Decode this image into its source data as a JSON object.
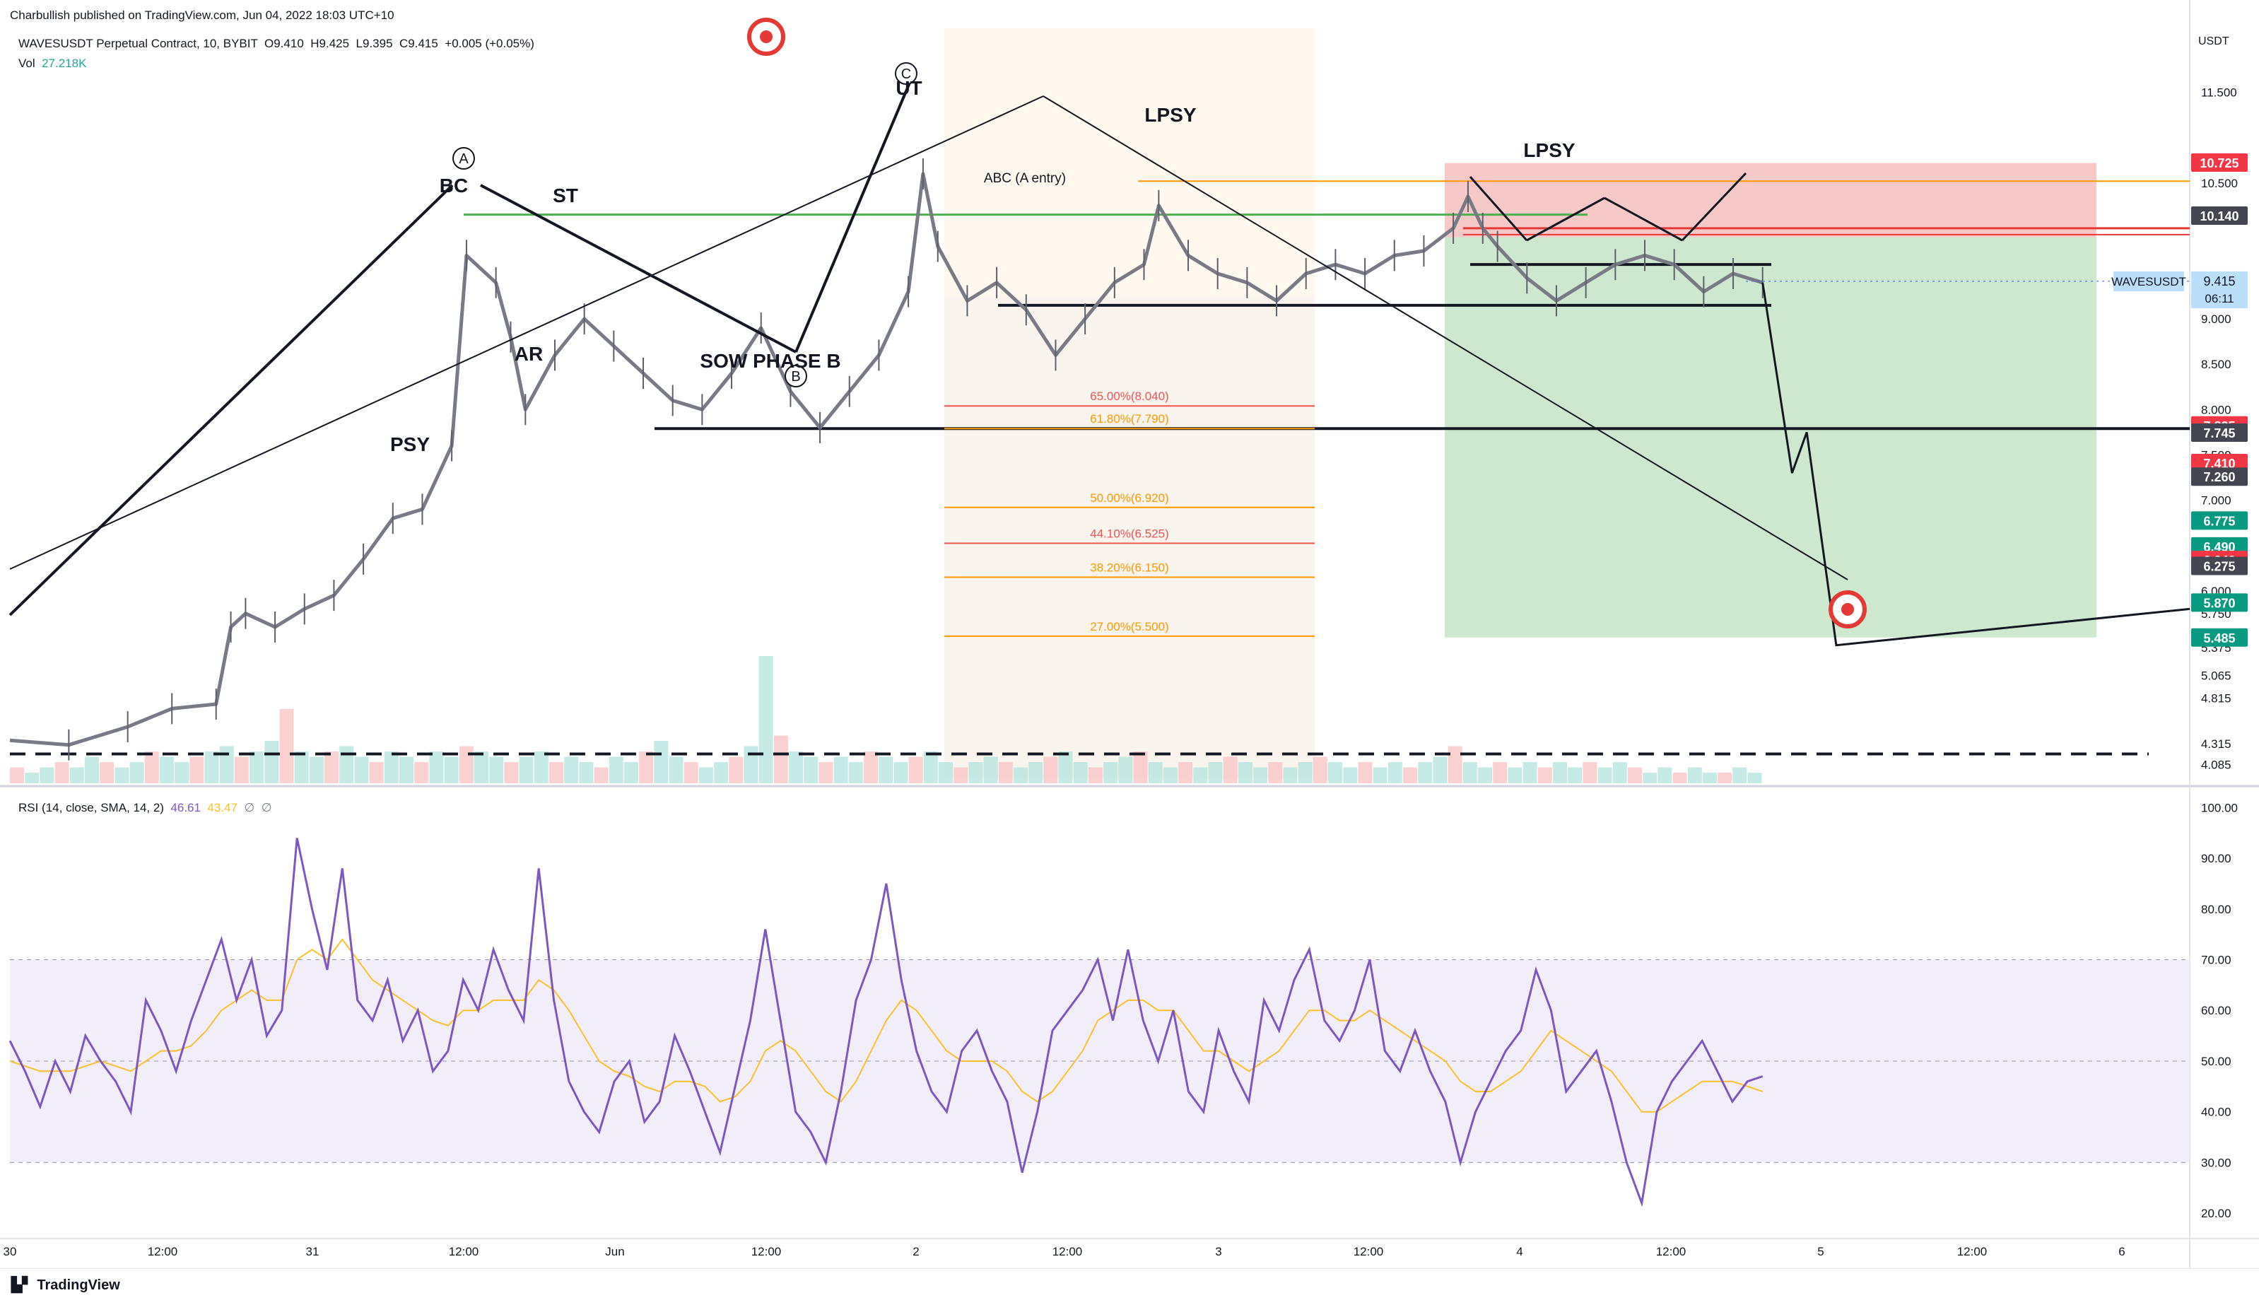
{
  "publisher_line": "Charbullish published on TradingView.com, Jun 04, 2022 18:03 UTC+10",
  "symbol_line": "WAVESUSDT Perpetual Contract, 10, BYBIT",
  "ohlc": {
    "o": "O9.410",
    "h": "H9.425",
    "l": "L9.395",
    "c": "C9.415",
    "chg": "+0.005 (+0.05%)"
  },
  "volume": {
    "label": "Vol",
    "value": "27.218K"
  },
  "rsi_legend": {
    "label": "RSI (14, close, SMA, 14, 2)",
    "rsi": "46.61",
    "sma": "43.47",
    "z1": "∅",
    "z2": "∅"
  },
  "logo": "TradingView",
  "currency": "USDT",
  "colors": {
    "up": "#26a69a",
    "down": "#ef5350",
    "candle": "#787b86",
    "rsi": "#7e57c2",
    "rsi_ma": "#fbc02d",
    "green_line": "#4caf50",
    "orange_line": "#ff9800",
    "target": "#e53935"
  },
  "chart_data": {
    "type": "line",
    "title": "WAVESUSDT Perpetual Contract, 10, BYBIT",
    "price_axis": {
      "ylim": [
        3.9,
        12.3
      ],
      "ticks": [
        "11.500",
        "10.500",
        "9.415",
        "9.000",
        "8.500",
        "8.000",
        "7.500",
        "7.000",
        "6.500",
        "6.000",
        "5.750",
        "5.375",
        "5.065",
        "4.815",
        "4.315",
        "4.085"
      ]
    },
    "time_axis": {
      "labels": [
        "30",
        "12:00",
        "31",
        "12:00",
        "Jun",
        "12:00",
        "2",
        "12:00",
        "3",
        "12:00",
        "4",
        "12:00",
        "5",
        "12:00",
        "6"
      ]
    },
    "price_path": [
      {
        "t": 0,
        "p": 4.35
      },
      {
        "t": 4,
        "p": 4.3
      },
      {
        "t": 8,
        "p": 4.5
      },
      {
        "t": 11,
        "p": 4.7
      },
      {
        "t": 14,
        "p": 4.75
      },
      {
        "t": 15,
        "p": 5.6
      },
      {
        "t": 16,
        "p": 5.75
      },
      {
        "t": 18,
        "p": 5.6
      },
      {
        "t": 20,
        "p": 5.8
      },
      {
        "t": 22,
        "p": 5.95
      },
      {
        "t": 24,
        "p": 6.35
      },
      {
        "t": 26,
        "p": 6.8
      },
      {
        "t": 28,
        "p": 6.9
      },
      {
        "t": 30,
        "p": 7.6
      },
      {
        "t": 31,
        "p": 9.7
      },
      {
        "t": 33,
        "p": 9.4
      },
      {
        "t": 34,
        "p": 8.8
      },
      {
        "t": 35,
        "p": 8.0
      },
      {
        "t": 37,
        "p": 8.6
      },
      {
        "t": 39,
        "p": 9.0
      },
      {
        "t": 41,
        "p": 8.7
      },
      {
        "t": 43,
        "p": 8.4
      },
      {
        "t": 45,
        "p": 8.1
      },
      {
        "t": 47,
        "p": 8.0
      },
      {
        "t": 49,
        "p": 8.4
      },
      {
        "t": 51,
        "p": 8.9
      },
      {
        "t": 53,
        "p": 8.2
      },
      {
        "t": 55,
        "p": 7.8
      },
      {
        "t": 57,
        "p": 8.2
      },
      {
        "t": 59,
        "p": 8.6
      },
      {
        "t": 61,
        "p": 9.3
      },
      {
        "t": 62,
        "p": 10.6
      },
      {
        "t": 63,
        "p": 9.8
      },
      {
        "t": 65,
        "p": 9.2
      },
      {
        "t": 67,
        "p": 9.4
      },
      {
        "t": 69,
        "p": 9.1
      },
      {
        "t": 71,
        "p": 8.6
      },
      {
        "t": 73,
        "p": 9.0
      },
      {
        "t": 75,
        "p": 9.4
      },
      {
        "t": 77,
        "p": 9.6
      },
      {
        "t": 78,
        "p": 10.25
      },
      {
        "t": 80,
        "p": 9.7
      },
      {
        "t": 82,
        "p": 9.5
      },
      {
        "t": 84,
        "p": 9.4
      },
      {
        "t": 86,
        "p": 9.2
      },
      {
        "t": 88,
        "p": 9.5
      },
      {
        "t": 90,
        "p": 9.6
      },
      {
        "t": 92,
        "p": 9.5
      },
      {
        "t": 94,
        "p": 9.7
      },
      {
        "t": 96,
        "p": 9.75
      },
      {
        "t": 98,
        "p": 10.0
      },
      {
        "t": 99,
        "p": 10.35
      },
      {
        "t": 100,
        "p": 10.0
      },
      {
        "t": 101,
        "p": 9.8
      },
      {
        "t": 103,
        "p": 9.45
      },
      {
        "t": 105,
        "p": 9.2
      },
      {
        "t": 107,
        "p": 9.4
      },
      {
        "t": 109,
        "p": 9.6
      },
      {
        "t": 111,
        "p": 9.7
      },
      {
        "t": 113,
        "p": 9.6
      },
      {
        "t": 115,
        "p": 9.3
      },
      {
        "t": 117,
        "p": 9.5
      },
      {
        "t": 119,
        "p": 9.4
      }
    ],
    "wave_labels": [
      "A",
      "B",
      "C"
    ],
    "annotations": [
      "BC",
      "ST",
      "AR",
      "PSY",
      "SOW PHASE B",
      "UT",
      "LPSY",
      "LPSY",
      "ABC (A entry)"
    ],
    "fib_levels": [
      {
        "label": "65.00%(8.040)",
        "price": 8.04,
        "color": "#ef5350"
      },
      {
        "label": "61.80%(7.790)",
        "price": 7.79,
        "color": "#ff9800"
      },
      {
        "label": "50.00%(6.920)",
        "price": 6.92,
        "color": "#ff9800"
      },
      {
        "label": "44.10%(6.525)",
        "price": 6.525,
        "color": "#ef5350"
      },
      {
        "label": "38.20%(6.150)",
        "price": 6.15,
        "color": "#ff9800"
      },
      {
        "label": "27.00%(5.500)",
        "price": 5.5,
        "color": "#ff9800"
      }
    ],
    "price_tags": [
      {
        "text": "10.725",
        "price": 10.725,
        "bg": "#f23645"
      },
      {
        "text": "10.140",
        "price": 10.14,
        "bg": "#434651"
      },
      {
        "text": "7.825",
        "price": 7.825,
        "bg": "#f23645"
      },
      {
        "text": "7.745",
        "price": 7.745,
        "bg": "#434651"
      },
      {
        "text": "7.410",
        "price": 7.41,
        "bg": "#f23645"
      },
      {
        "text": "7.260",
        "price": 7.26,
        "bg": "#434651"
      },
      {
        "text": "6.775",
        "price": 6.775,
        "bg": "#089981"
      },
      {
        "text": "6.490",
        "price": 6.49,
        "bg": "#089981"
      },
      {
        "text": "6.340",
        "price": 6.34,
        "bg": "#f23645"
      },
      {
        "text": "6.275",
        "price": 6.275,
        "bg": "#434651"
      },
      {
        "text": "5.870",
        "price": 5.87,
        "bg": "#089981"
      },
      {
        "text": "5.485",
        "price": 5.485,
        "bg": "#089981"
      }
    ],
    "current_price": {
      "symbol": "WAVESUSDT",
      "price": "9.415",
      "countdown": "06:11",
      "value": 9.415
    },
    "green_resistance": 10.15,
    "orange_resistance": 10.52,
    "support_lines": [
      7.79,
      9.15,
      9.6
    ],
    "position": {
      "entry": 9.9,
      "stop": 10.72,
      "target": 5.485
    },
    "projection": [
      {
        "t": 119,
        "p": 9.4
      },
      {
        "t": 121,
        "p": 7.3
      },
      {
        "t": 122,
        "p": 7.75
      },
      {
        "t": 124,
        "p": 5.4
      },
      {
        "t": 148,
        "p": 5.8
      }
    ],
    "rsi": {
      "ylim": [
        15,
        102
      ],
      "ticks": [
        "100.00",
        "90.00",
        "80.00",
        "70.00",
        "60.00",
        "50.00",
        "40.00",
        "30.00",
        "20.00"
      ],
      "band": [
        30,
        70
      ],
      "values": [
        54,
        48,
        41,
        50,
        44,
        55,
        50,
        46,
        40,
        62,
        56,
        48,
        58,
        66,
        74,
        62,
        70,
        55,
        60,
        94,
        80,
        68,
        88,
        62,
        58,
        66,
        54,
        60,
        48,
        52,
        66,
        60,
        72,
        64,
        58,
        88,
        62,
        46,
        40,
        36,
        46,
        50,
        38,
        42,
        55,
        48,
        40,
        32,
        45,
        58,
        76,
        58,
        40,
        36,
        30,
        44,
        62,
        70,
        85,
        66,
        52,
        44,
        40,
        52,
        56,
        48,
        42,
        28,
        40,
        56,
        60,
        64,
        70,
        58,
        72,
        58,
        50,
        60,
        44,
        40,
        56,
        48,
        42,
        62,
        56,
        66,
        72,
        58,
        54,
        60,
        70,
        52,
        48,
        56,
        48,
        42,
        30,
        40,
        46,
        52,
        56,
        68,
        60,
        44,
        48,
        52,
        42,
        30,
        22,
        40,
        46,
        50,
        54,
        48,
        42,
        46,
        47
      ],
      "ma": [
        50,
        49,
        48,
        48,
        48,
        49,
        50,
        49,
        48,
        50,
        52,
        52,
        53,
        56,
        60,
        62,
        64,
        62,
        62,
        70,
        72,
        70,
        74,
        70,
        66,
        64,
        62,
        60,
        58,
        57,
        60,
        60,
        62,
        62,
        62,
        66,
        64,
        60,
        55,
        50,
        48,
        47,
        45,
        44,
        46,
        46,
        45,
        42,
        43,
        46,
        52,
        54,
        52,
        48,
        44,
        42,
        46,
        52,
        58,
        62,
        60,
        56,
        52,
        50,
        50,
        50,
        48,
        44,
        42,
        44,
        48,
        52,
        58,
        60,
        62,
        62,
        60,
        60,
        56,
        52,
        52,
        50,
        48,
        50,
        52,
        56,
        60,
        60,
        58,
        58,
        60,
        58,
        56,
        54,
        52,
        50,
        46,
        44,
        44,
        46,
        48,
        52,
        56,
        54,
        52,
        50,
        48,
        44,
        40,
        40,
        42,
        44,
        46,
        46,
        46,
        45,
        44
      ]
    },
    "volume_values": [
      3,
      2,
      3,
      4,
      3,
      5,
      4,
      3,
      4,
      6,
      5,
      4,
      5,
      6,
      7,
      5,
      6,
      8,
      14,
      6,
      5,
      6,
      7,
      5,
      4,
      6,
      5,
      4,
      6,
      5,
      7,
      6,
      5,
      4,
      5,
      6,
      4,
      5,
      4,
      3,
      5,
      4,
      6,
      8,
      5,
      4,
      3,
      4,
      5,
      7,
      24,
      9,
      6,
      5,
      4,
      5,
      4,
      6,
      5,
      4,
      5,
      6,
      4,
      3,
      4,
      5,
      4,
      3,
      4,
      5,
      6,
      4,
      3,
      4,
      5,
      6,
      4,
      3,
      4,
      3,
      4,
      5,
      4,
      3,
      4,
      3,
      4,
      5,
      4,
      3,
      4,
      3,
      4,
      3,
      4,
      5,
      7,
      4,
      3,
      4,
      3,
      4,
      3,
      4,
      3,
      4,
      3,
      4,
      3,
      2,
      3,
      2,
      3,
      2,
      2,
      3,
      2
    ]
  }
}
